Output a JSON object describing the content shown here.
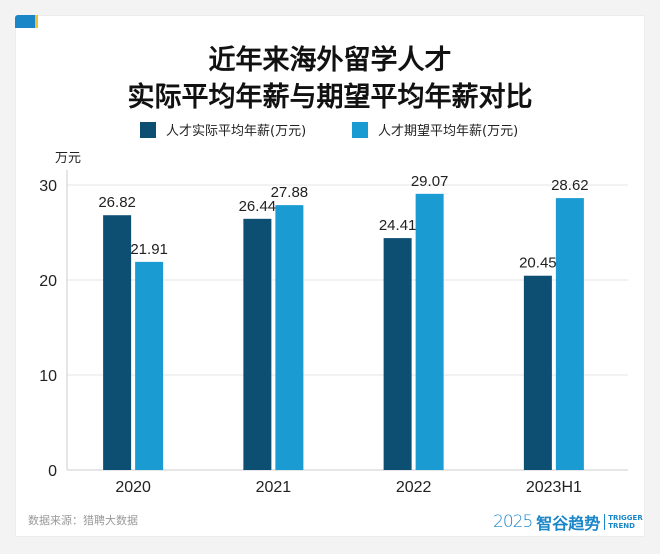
{
  "title_line1": "近年来海外留学人才",
  "title_line2": "实际平均年薪与期望平均年薪对比",
  "source": "数据来源：猎聘大数据",
  "logo": {
    "year": "2025",
    "name": "智谷趋势",
    "en1": "TRIGGER",
    "en2": "TREND"
  },
  "colors": {
    "actual": "#0d4f73",
    "expected": "#1a9bd1"
  },
  "chart_data": {
    "type": "bar",
    "ylabel": "万元",
    "ylim": [
      0,
      30
    ],
    "yticks": [
      0,
      10,
      20,
      30
    ],
    "grid": true,
    "legend_position": "top",
    "categories": [
      "2020",
      "2021",
      "2022",
      "2023H1"
    ],
    "series": [
      {
        "name": "人才实际平均年薪(万元)",
        "values": [
          26.82,
          26.44,
          24.41,
          20.45
        ]
      },
      {
        "name": "人才期望平均年薪(万元)",
        "values": [
          21.91,
          27.88,
          29.07,
          28.62
        ]
      }
    ]
  }
}
